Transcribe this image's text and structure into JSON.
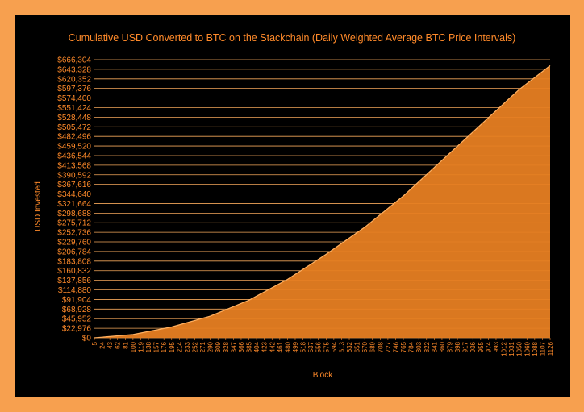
{
  "colors": {
    "page_background": "#f7a04f",
    "chart_background": "#000000",
    "text": "#ff8a2a",
    "grid": "#f2a65a",
    "area_fill": "#e67e22",
    "line": "#ffb060"
  },
  "chart_data": {
    "type": "area",
    "title": "Cumulative USD Converted to BTC on the Stackchain (Daily Weighted Average BTC Price Intervals)",
    "xlabel": "Block",
    "ylabel": "USD Invested",
    "grid": true,
    "xlim": [
      5,
      1126
    ],
    "ylim": [
      0,
      666304
    ],
    "y_ticks": [
      "$0",
      "$22,976",
      "$45,952",
      "$68,928",
      "$91,904",
      "$114,880",
      "$137,856",
      "$160,832",
      "$183,808",
      "$206,784",
      "$229,760",
      "$252,736",
      "$275,712",
      "$298,688",
      "$321,664",
      "$344,640",
      "$367,616",
      "$390,592",
      "$413,568",
      "$436,544",
      "$459,520",
      "$482,496",
      "$505,472",
      "$528,448",
      "$551,424",
      "$574,400",
      "$597,376",
      "$620,352",
      "$643,328",
      "$666,304"
    ],
    "x_ticks": [
      "5",
      "24",
      "43",
      "62",
      "81",
      "100",
      "119",
      "138",
      "157",
      "176",
      "195",
      "214",
      "233",
      "252",
      "271",
      "290",
      "309",
      "328",
      "347",
      "366",
      "385",
      "404",
      "423",
      "442",
      "461",
      "480",
      "499",
      "518",
      "537",
      "556",
      "575",
      "594",
      "613",
      "632",
      "651",
      "670",
      "689",
      "708",
      "727",
      "746",
      "765",
      "784",
      "803",
      "822",
      "841",
      "860",
      "879",
      "898",
      "917",
      "936",
      "955",
      "974",
      "993",
      "1012",
      "1031",
      "1050",
      "1069",
      "1088",
      "1107",
      "1126"
    ],
    "series": [
      {
        "x": [
          5,
          100,
          195,
          290,
          385,
          480,
          575,
          670,
          765,
          860,
          955,
          1050,
          1126
        ],
        "values": [
          0,
          8000,
          26000,
          52000,
          90000,
          140000,
          200000,
          265000,
          340000,
          425000,
          510000,
          595000,
          652000
        ]
      }
    ]
  }
}
